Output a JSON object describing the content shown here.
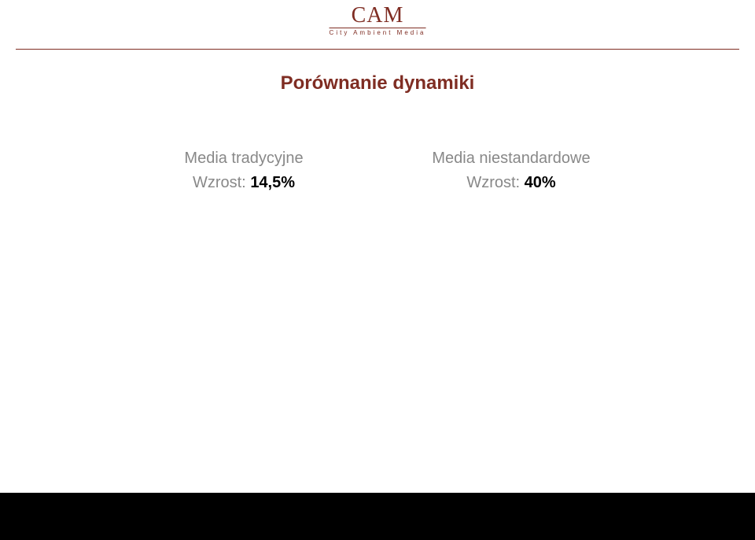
{
  "logo": {
    "text": "CAM",
    "subtext": "City Ambient Media",
    "color": "#7f2d23",
    "fontsize_main": 28,
    "fontsize_sub": 8,
    "underline_color": "#7f2d23"
  },
  "rule_color": "#7f2d23",
  "title": {
    "text": "Porównanie dynamiki",
    "color": "#7f2d23",
    "fontsize": 24,
    "fontweight": "bold"
  },
  "comparison": {
    "heading_color": "#888888",
    "heading_fontsize": 20,
    "value_label_color": "#888888",
    "value_number_color": "#000000",
    "value_fontsize": 20,
    "value_fontweight_number": "bold",
    "left": {
      "heading": "Media tradycyjne",
      "value_label": "Wzrost: ",
      "value_number": "14,5%"
    },
    "right": {
      "heading": "Media niestandardowe",
      "value_label": "Wzrost: ",
      "value_number": "40%"
    }
  },
  "footer": {
    "background_color": "#000000"
  }
}
